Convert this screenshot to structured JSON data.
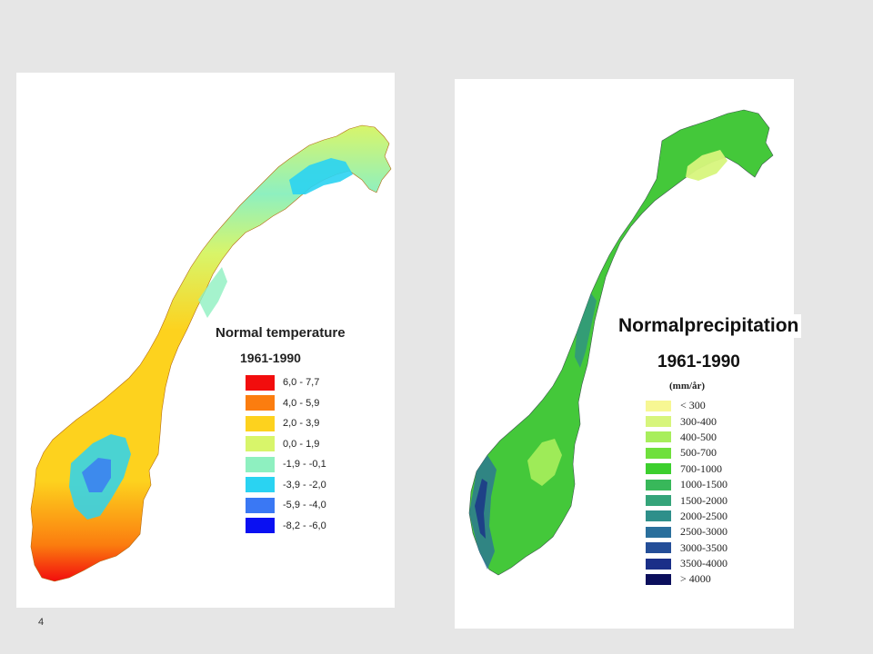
{
  "page_number": "4",
  "temperature": {
    "title": "Normal temperature",
    "period": "1961-1990",
    "legend": [
      {
        "label": "6,0 - 7,7",
        "color": "#f20d0d"
      },
      {
        "label": "4,0 - 5,9",
        "color": "#fb7d0f"
      },
      {
        "label": "2,0 - 3,9",
        "color": "#fdd21e"
      },
      {
        "label": "0,0 - 1,9",
        "color": "#d8f56a"
      },
      {
        "label": "-1,9 - -0,1",
        "color": "#8ef0c0"
      },
      {
        "label": "-3,9 - -2,0",
        "color": "#2ad3f2"
      },
      {
        "label": "-5,9 - -4,0",
        "color": "#3a78f4"
      },
      {
        "label": "-8,2 - -6,0",
        "color": "#0a10f2"
      }
    ]
  },
  "precipitation": {
    "title": "Normalprecipitation",
    "period": "1961-1990",
    "unit": "(mm/år)",
    "legend": [
      {
        "label": "< 300",
        "color": "#f7f793"
      },
      {
        "label": "300-400",
        "color": "#d7f57c"
      },
      {
        "label": "400-500",
        "color": "#a8ee5c"
      },
      {
        "label": "500-700",
        "color": "#6fe03c"
      },
      {
        "label": "700-1000",
        "color": "#3ccf2e"
      },
      {
        "label": "1000-1500",
        "color": "#38b85a"
      },
      {
        "label": "1500-2000",
        "color": "#35a47a"
      },
      {
        "label": "2000-2500",
        "color": "#2e8f8a"
      },
      {
        "label": "2500-3000",
        "color": "#2a6f9c"
      },
      {
        "label": "3000-3500",
        "color": "#244e98"
      },
      {
        "label": "3500-4000",
        "color": "#1a2f88"
      },
      {
        "label": "> 4000",
        "color": "#0b0f5c"
      }
    ]
  }
}
